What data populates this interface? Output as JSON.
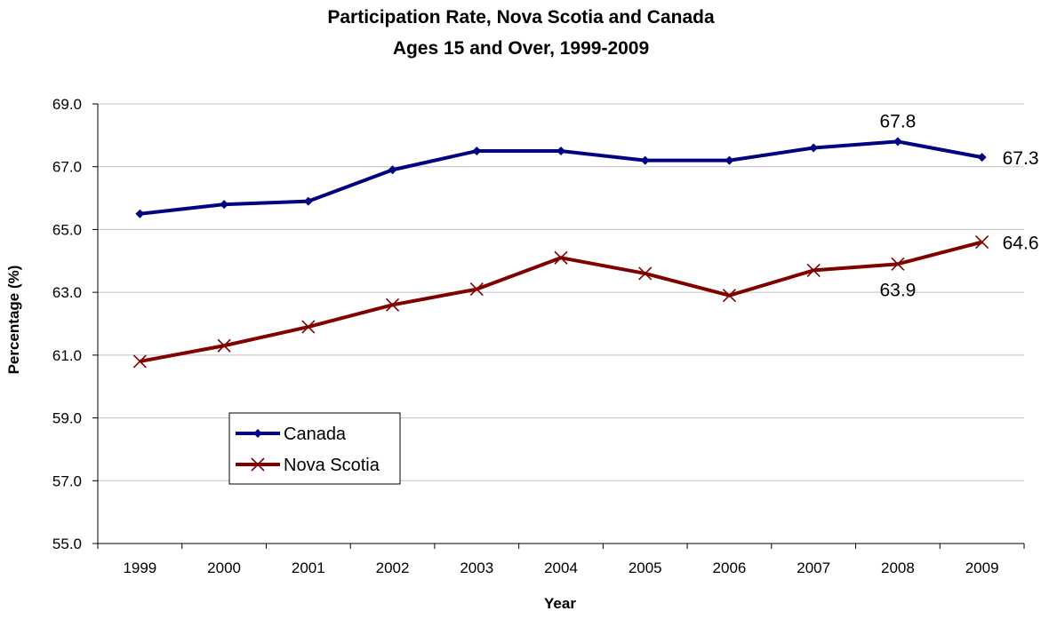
{
  "chart_data": {
    "type": "line",
    "title": "Participation Rate, Nova Scotia and Canada",
    "subtitle": "Ages 15 and Over, 1999-2009",
    "xlabel": "Year",
    "ylabel": "Percentage (%)",
    "categories": [
      "1999",
      "2000",
      "2001",
      "2002",
      "2003",
      "2004",
      "2005",
      "2006",
      "2007",
      "2008",
      "2009"
    ],
    "ylim": [
      55.0,
      69.0
    ],
    "yticks": [
      "55.0",
      "57.0",
      "59.0",
      "61.0",
      "63.0",
      "65.0",
      "67.0",
      "69.0"
    ],
    "grid": true,
    "legend_position": "lower-left",
    "series": [
      {
        "name": "Canada",
        "color": "#000080",
        "marker": "diamond",
        "values": [
          65.5,
          65.8,
          65.9,
          66.9,
          67.5,
          67.5,
          67.2,
          67.2,
          67.6,
          67.8,
          67.3
        ]
      },
      {
        "name": "Nova Scotia",
        "color": "#800000",
        "marker": "x",
        "values": [
          60.8,
          61.3,
          61.9,
          62.6,
          63.1,
          64.1,
          63.6,
          62.9,
          63.7,
          63.9,
          64.6
        ]
      }
    ],
    "annotations": [
      {
        "series": 0,
        "index": 9,
        "text": "67.8",
        "position": "above"
      },
      {
        "series": 0,
        "index": 10,
        "text": "67.3",
        "position": "right"
      },
      {
        "series": 1,
        "index": 9,
        "text": "63.9",
        "position": "below"
      },
      {
        "series": 1,
        "index": 10,
        "text": "64.6",
        "position": "right"
      }
    ]
  }
}
